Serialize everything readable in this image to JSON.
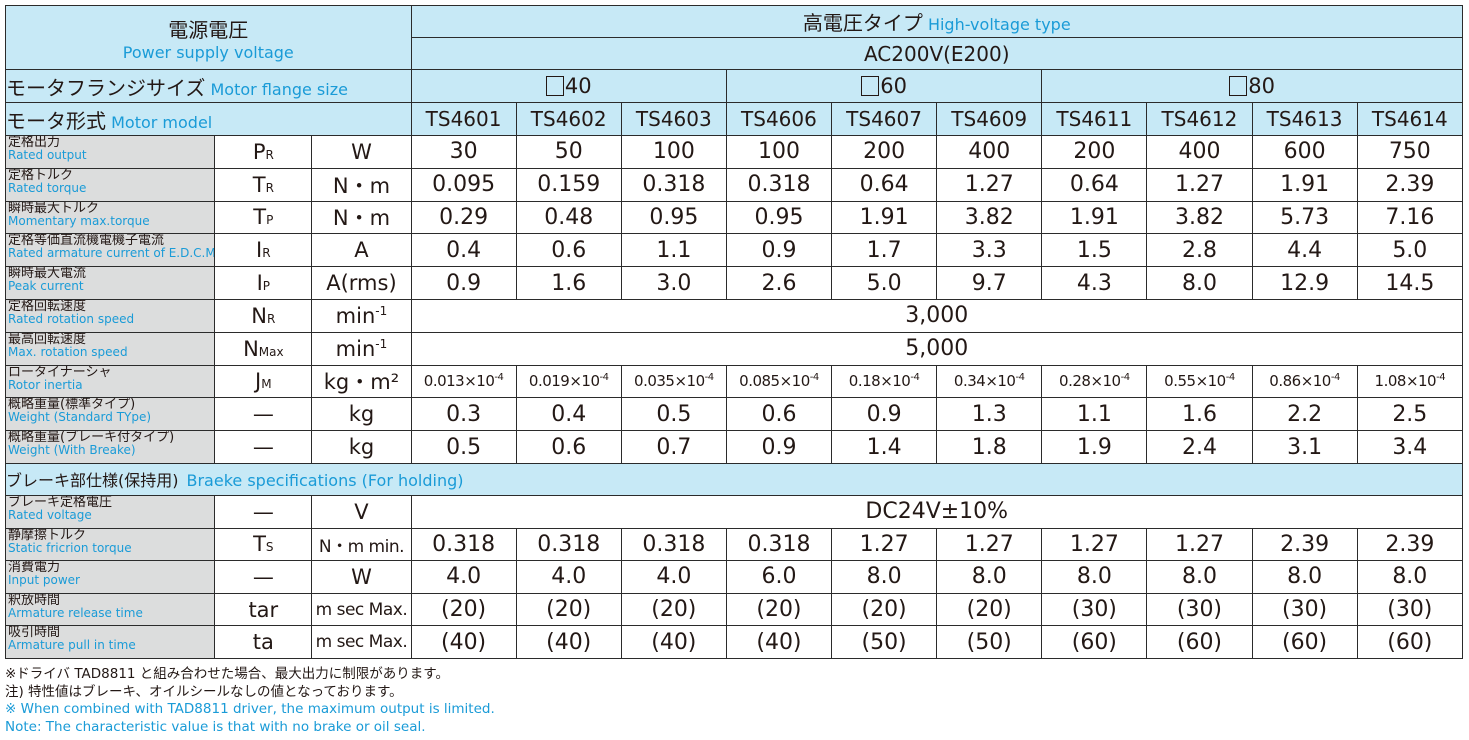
{
  "header": {
    "voltage_jp": "電源電圧",
    "voltage_en": "Power supply voltage",
    "type_jp": "高電圧タイプ",
    "type_en": "High-voltage type",
    "supply": "AC200V(E200)",
    "flange_jp": "モータフランジサイズ",
    "flange_en": "Motor flange size",
    "flanges": [
      "40",
      "60",
      "80"
    ],
    "model_jp": "モータ形式",
    "model_en": "Motor model",
    "models": [
      "TS4601",
      "TS4602",
      "TS4603",
      "TS4606",
      "TS4607",
      "TS4609",
      "TS4611",
      "TS4612",
      "TS4613",
      "TS4614"
    ]
  },
  "rows": [
    {
      "jp": "定格出力",
      "en": "Rated output",
      "sym": "P",
      "sub": "R",
      "unit": "W",
      "values": [
        "30",
        "50",
        "100",
        "100",
        "200",
        "400",
        "200",
        "400",
        "600",
        "750"
      ]
    },
    {
      "jp": "定格トルク",
      "en": "Rated torque",
      "sym": "T",
      "sub": "R",
      "unit": "N・m",
      "values": [
        "0.095",
        "0.159",
        "0.318",
        "0.318",
        "0.64",
        "1.27",
        "0.64",
        "1.27",
        "1.91",
        "2.39"
      ]
    },
    {
      "jp": "瞬時最大トルク",
      "en": "Momentary max.torque",
      "sym": "T",
      "sub": "P",
      "unit": "N・m",
      "values": [
        "0.29",
        "0.48",
        "0.95",
        "0.95",
        "1.91",
        "3.82",
        "1.91",
        "3.82",
        "5.73",
        "7.16"
      ]
    },
    {
      "jp": "定格等価直流機電機子電流",
      "en": "Rated armature current of E.D.C.M",
      "sym": "I",
      "sub": "R",
      "unit": "A",
      "values": [
        "0.4",
        "0.6",
        "1.1",
        "0.9",
        "1.7",
        "3.3",
        "1.5",
        "2.8",
        "4.4",
        "5.0"
      ]
    },
    {
      "jp": "瞬時最大電流",
      "en": "Peak current",
      "sym": "I",
      "sub": "P",
      "unit": "A(rms)",
      "values": [
        "0.9",
        "1.6",
        "3.0",
        "2.6",
        "5.0",
        "9.7",
        "4.3",
        "8.0",
        "12.9",
        "14.5"
      ]
    },
    {
      "jp": "定格回転速度",
      "en": "Rated rotation speed",
      "sym": "N",
      "sub": "R",
      "unit": "min-1",
      "span": "3,000"
    },
    {
      "jp": "最高回転速度",
      "en": "Max. rotation speed",
      "sym": "N",
      "sub": "Max",
      "unit": "min-1",
      "span": "5,000"
    },
    {
      "jp": "ロータイナーシャ",
      "en": "Rotor inertia",
      "sym": "J",
      "sub": "M",
      "unit": "kg・m²",
      "values": [
        "0.013×10-4",
        "0.019×10-4",
        "0.035×10-4",
        "0.085×10-4",
        "0.18×10-4",
        "0.34×10-4",
        "0.28×10-4",
        "0.55×10-4",
        "0.86×10-4",
        "1.08×10-4"
      ]
    },
    {
      "jp": "概略重量(標準タイプ)",
      "en": "Weight (Standard TYpe)",
      "sym": "—",
      "sub": "",
      "unit": "kg",
      "values": [
        "0.3",
        "0.4",
        "0.5",
        "0.6",
        "0.9",
        "1.3",
        "1.1",
        "1.6",
        "2.2",
        "2.5"
      ]
    },
    {
      "jp": "概略重量(ブレーキ付タイプ)",
      "en": "Weight (With Breake)",
      "sym": "—",
      "sub": "",
      "unit": "kg",
      "values": [
        "0.5",
        "0.6",
        "0.7",
        "0.9",
        "1.4",
        "1.8",
        "1.9",
        "2.4",
        "3.1",
        "3.4"
      ]
    }
  ],
  "brake": {
    "title_jp": "ブレーキ部仕様(保持用)",
    "title_en": "Braeke specifications (For holding)",
    "rows": [
      {
        "jp": "ブレーキ定格電圧",
        "en": "Rated voltage",
        "sym": "—",
        "sub": "",
        "unit": "V",
        "span": "DC24V±10%"
      },
      {
        "jp": "静摩擦トルク",
        "en": "Static fricrion torque",
        "sym": "T",
        "sub": "S",
        "unit": "N・m min.",
        "values": [
          "0.318",
          "0.318",
          "0.318",
          "0.318",
          "1.27",
          "1.27",
          "1.27",
          "1.27",
          "2.39",
          "2.39"
        ]
      },
      {
        "jp": "消費電力",
        "en": "Input power",
        "sym": "—",
        "sub": "",
        "unit": "W",
        "values": [
          "4.0",
          "4.0",
          "4.0",
          "6.0",
          "8.0",
          "8.0",
          "8.0",
          "8.0",
          "8.0",
          "8.0"
        ]
      },
      {
        "jp": "釈放時間",
        "en": "Armature release time",
        "sym": "tar",
        "sub": "",
        "unit": "m sec Max.",
        "values": [
          "(20)",
          "(20)",
          "(20)",
          "(20)",
          "(20)",
          "(20)",
          "(30)",
          "(30)",
          "(30)",
          "(30)"
        ]
      },
      {
        "jp": "吸引時間",
        "en": "Armature pull in time",
        "sym": "ta",
        "sub": "",
        "unit": "m sec Max.",
        "values": [
          "(40)",
          "(40)",
          "(40)",
          "(40)",
          "(50)",
          "(50)",
          "(60)",
          "(60)",
          "(60)",
          "(60)"
        ]
      }
    ]
  },
  "notes": [
    "※ドライバ TAD8811 と組み合わせた場合、最大出力に制限があります。",
    "注) 特性値はブレーキ、オイルシールなしの値となっております。",
    "※ When combined with TAD8811 driver, the maximum output is limited.",
    "Note: The characteristic value is that with no brake or oil seal."
  ]
}
